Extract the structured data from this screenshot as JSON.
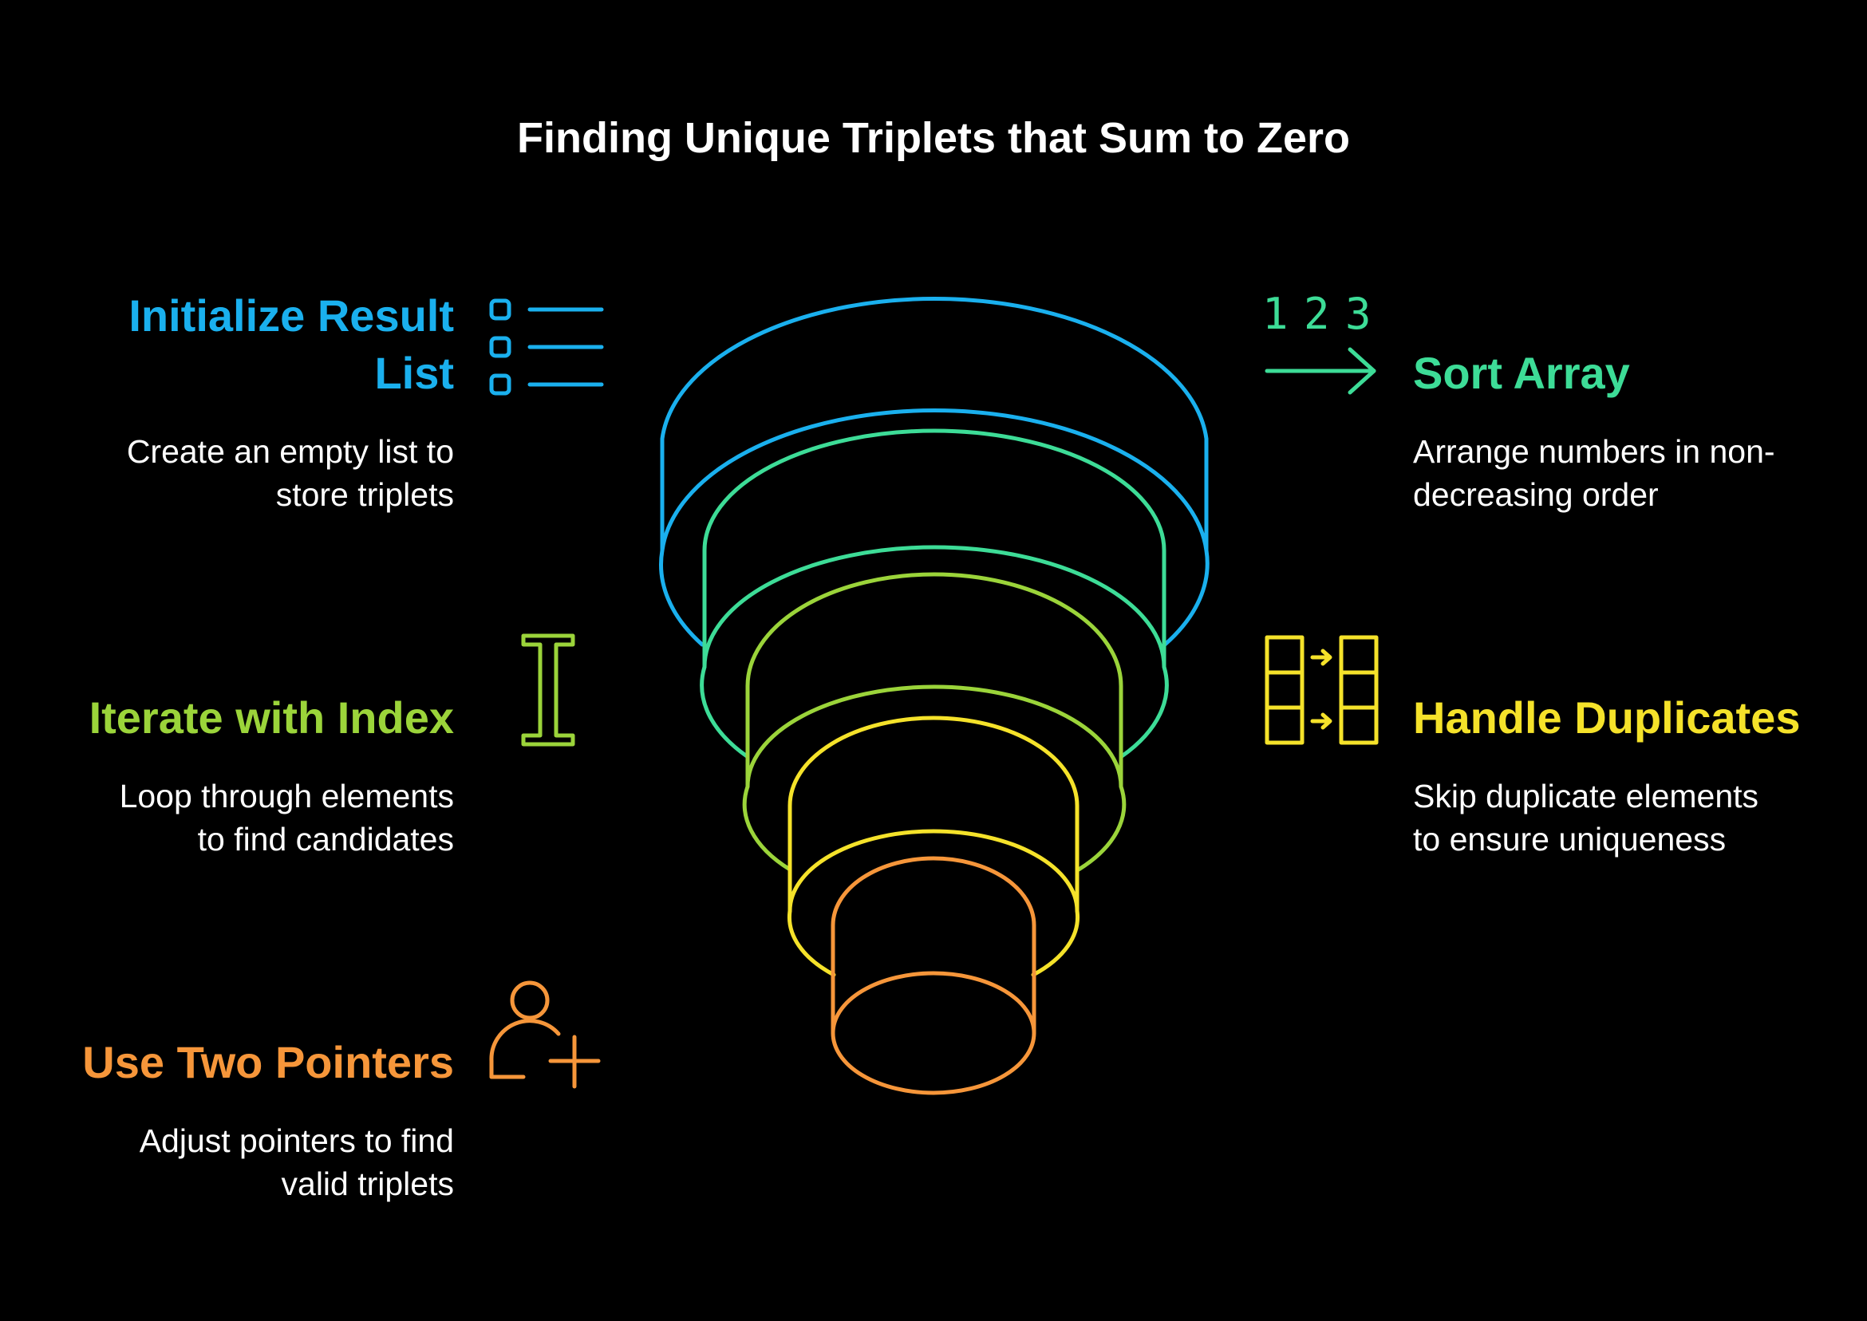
{
  "title": "Finding Unique Triplets that Sum to Zero",
  "colors": {
    "background": "#000000",
    "blue": "#1ab0ee",
    "teal": "#3ddc97",
    "green": "#9bd43a",
    "yellow": "#f5e22a",
    "orange": "#f6963a"
  },
  "steps": {
    "initialize": {
      "title_line1": "Initialize Result",
      "title_line2": "List",
      "desc_line1": "Create an empty list to",
      "desc_line2": "store triplets",
      "icon": "list-icon"
    },
    "sort": {
      "title": "Sort Array",
      "desc_line1": "Arrange numbers in non-",
      "desc_line2": "decreasing order",
      "icon": "sort-numbers-icon",
      "icon_digits": [
        "1",
        "2",
        "3"
      ]
    },
    "iterate": {
      "title": "Iterate with Index",
      "desc_line1": "Loop through elements",
      "desc_line2": "to find candidates",
      "icon": "text-cursor-icon"
    },
    "duplicates": {
      "title": "Handle Duplicates",
      "desc_line1": "Skip duplicate elements",
      "desc_line2": "to ensure uniqueness",
      "icon": "table-transfer-icon"
    },
    "pointers": {
      "title": "Use Two Pointers",
      "desc_line1": "Adjust pointers to find",
      "desc_line2": "valid triplets",
      "icon": "add-user-icon"
    }
  }
}
